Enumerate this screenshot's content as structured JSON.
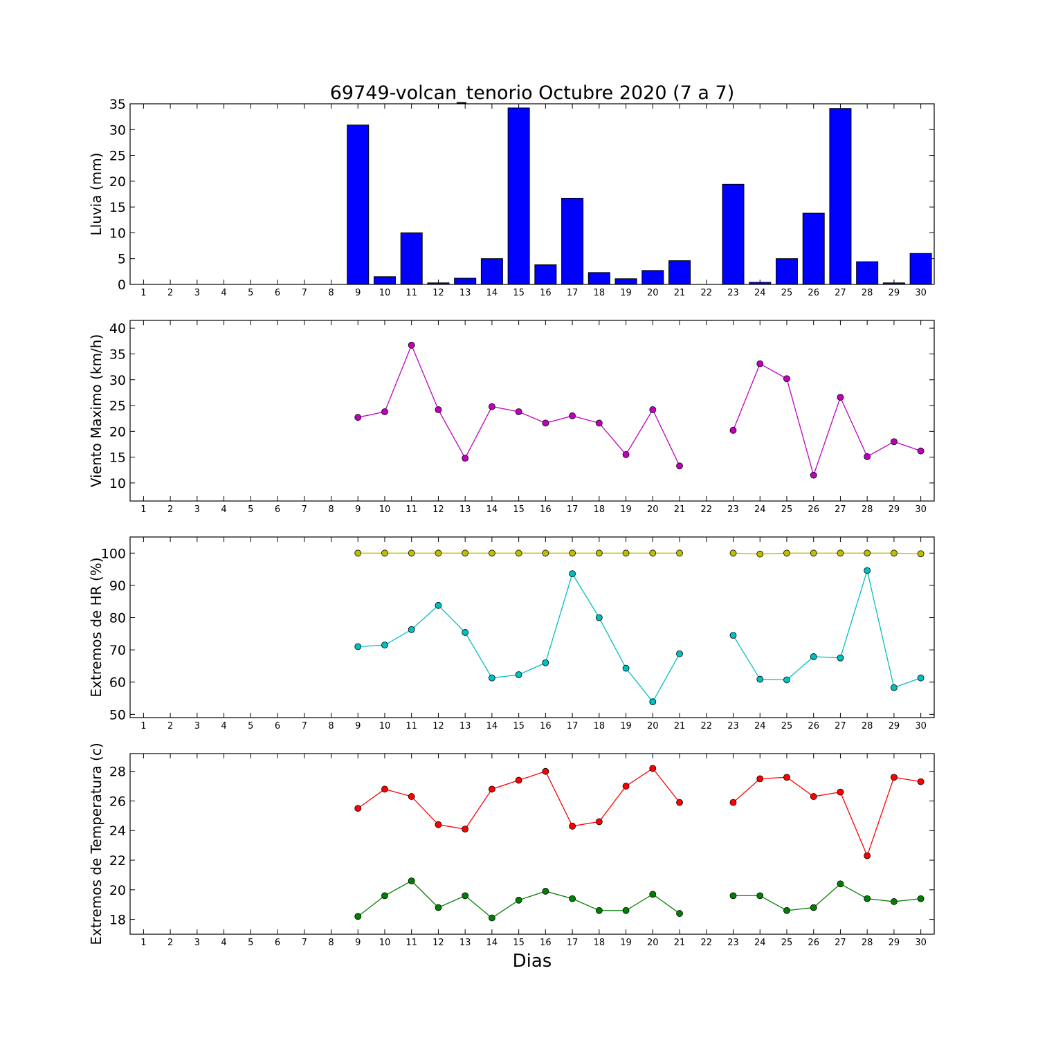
{
  "title": "69749-volcan_tenorio Octubre 2020  (7 a 7)",
  "xlabel": "Dias",
  "chart_data": [
    {
      "type": "bar",
      "ylabel": "Lluvia (mm)",
      "ylim": [
        0,
        35
      ],
      "yticks": [
        0,
        5,
        10,
        15,
        20,
        25,
        30,
        35
      ],
      "color": "#0000ff",
      "x": [
        1,
        2,
        3,
        4,
        5,
        6,
        7,
        8,
        9,
        10,
        11,
        12,
        13,
        14,
        15,
        16,
        17,
        18,
        19,
        20,
        21,
        22,
        23,
        24,
        25,
        26,
        27,
        28,
        29,
        30
      ],
      "values": [
        null,
        null,
        null,
        null,
        null,
        null,
        null,
        null,
        30.9,
        1.5,
        10.0,
        0.3,
        1.2,
        5.0,
        34.2,
        3.8,
        16.7,
        2.3,
        1.1,
        2.7,
        4.6,
        null,
        19.4,
        0.4,
        5.0,
        13.8,
        34.1,
        4.4,
        0.3,
        6.0
      ]
    },
    {
      "type": "line",
      "ylabel": "Viento Maximo (km/h)",
      "ylim": [
        6.5,
        41.5
      ],
      "yticks": [
        10,
        15,
        20,
        25,
        30,
        35,
        40
      ],
      "x": [
        1,
        2,
        3,
        4,
        5,
        6,
        7,
        8,
        9,
        10,
        11,
        12,
        13,
        14,
        15,
        16,
        17,
        18,
        19,
        20,
        21,
        22,
        23,
        24,
        25,
        26,
        27,
        28,
        29,
        30
      ],
      "series": [
        {
          "color": "#bf00bf",
          "values": [
            null,
            null,
            null,
            null,
            null,
            null,
            null,
            null,
            22.7,
            23.8,
            36.7,
            24.2,
            14.8,
            24.8,
            23.8,
            21.6,
            23.0,
            21.6,
            15.5,
            24.2,
            13.3,
            null,
            20.2,
            33.1,
            30.2,
            11.5,
            26.6,
            15.1,
            18.0,
            16.2
          ]
        }
      ]
    },
    {
      "type": "line",
      "ylabel": "Extremos de HR (%)",
      "ylim": [
        49,
        105
      ],
      "yticks": [
        50,
        60,
        70,
        80,
        90,
        100
      ],
      "x": [
        1,
        2,
        3,
        4,
        5,
        6,
        7,
        8,
        9,
        10,
        11,
        12,
        13,
        14,
        15,
        16,
        17,
        18,
        19,
        20,
        21,
        22,
        23,
        24,
        25,
        26,
        27,
        28,
        29,
        30
      ],
      "series": [
        {
          "color": "#bfbf00",
          "values": [
            null,
            null,
            null,
            null,
            null,
            null,
            null,
            null,
            100,
            100,
            100,
            100,
            100,
            100,
            100,
            100,
            100,
            100,
            100,
            100,
            100,
            null,
            100,
            99.7,
            100,
            100,
            100,
            100,
            100,
            99.8
          ]
        },
        {
          "color": "#00bfbf",
          "values": [
            null,
            null,
            null,
            null,
            null,
            null,
            null,
            null,
            71.0,
            71.5,
            76.3,
            83.8,
            75.4,
            61.3,
            62.3,
            66.0,
            93.6,
            80.0,
            64.3,
            53.9,
            68.8,
            null,
            74.5,
            60.9,
            60.7,
            67.9,
            67.5,
            94.6,
            58.3,
            61.3
          ]
        }
      ]
    },
    {
      "type": "line",
      "ylabel": "Extremos de Temperatura (c)",
      "ylim": [
        17.0,
        29.2
      ],
      "yticks": [
        18,
        20,
        22,
        24,
        26,
        28
      ],
      "x": [
        1,
        2,
        3,
        4,
        5,
        6,
        7,
        8,
        9,
        10,
        11,
        12,
        13,
        14,
        15,
        16,
        17,
        18,
        19,
        20,
        21,
        22,
        23,
        24,
        25,
        26,
        27,
        28,
        29,
        30
      ],
      "series": [
        {
          "color": "#ff0000",
          "values": [
            null,
            null,
            null,
            null,
            null,
            null,
            null,
            null,
            25.5,
            26.8,
            26.3,
            24.4,
            24.1,
            26.8,
            27.4,
            28.0,
            24.3,
            24.6,
            27.0,
            28.2,
            25.9,
            null,
            25.9,
            27.5,
            27.6,
            26.3,
            26.6,
            22.3,
            27.6,
            27.3
          ]
        },
        {
          "color": "#008000",
          "values": [
            null,
            null,
            null,
            null,
            null,
            null,
            null,
            null,
            18.2,
            19.6,
            20.6,
            18.8,
            19.6,
            18.1,
            19.3,
            19.9,
            19.4,
            18.6,
            18.6,
            19.7,
            18.4,
            null,
            19.6,
            19.6,
            18.6,
            18.8,
            20.4,
            19.4,
            19.2,
            19.4
          ]
        }
      ]
    }
  ]
}
